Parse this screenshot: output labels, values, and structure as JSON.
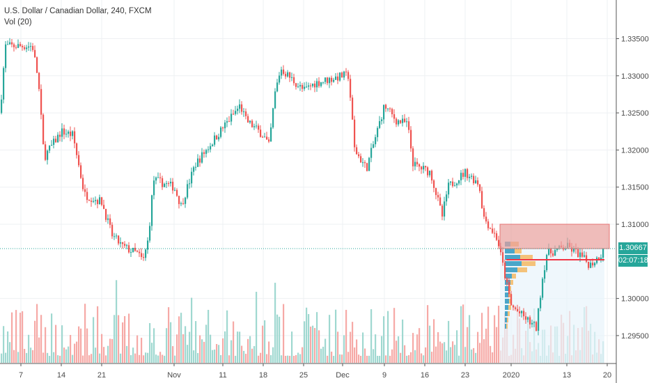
{
  "header": {
    "title": "U.S. Dollar / Canadian Dollar, 240, FXCM",
    "volume_indicator": "Vol (20)"
  },
  "price_tag": {
    "value": "1.30667",
    "countdown": "02:07:18",
    "color": "#26a69a"
  },
  "colors": {
    "up": "#26a69a",
    "down": "#ef5350",
    "zone": "#e8a09c",
    "poc": "#f23645",
    "profile_up": "#4aa6c9",
    "profile_down": "#f4c27a"
  },
  "chart_data": {
    "type": "candlestick",
    "title": "U.S. Dollar / Canadian Dollar, 240, FXCM",
    "yaxis": {
      "ticks": [
        "1.33500",
        "1.33000",
        "1.32500",
        "1.32000",
        "1.31500",
        "1.31000",
        "1.30000",
        "1.29500"
      ],
      "range": [
        1.2915,
        1.3395
      ]
    },
    "xaxis": {
      "ticks": [
        "7",
        "14",
        "21",
        "Nov",
        "11",
        "18",
        "25",
        "Dec",
        "9",
        "16",
        "23",
        "2020",
        "13",
        "20"
      ]
    },
    "grid": true,
    "last_price": 1.30667,
    "resistance_zone": [
      1.3067,
      1.31
    ],
    "poc_level": 1.305,
    "price_path": [
      [
        "Oct 3",
        1.325
      ],
      [
        "Oct 4",
        1.334
      ],
      [
        "Oct 9",
        1.334
      ],
      [
        "Oct 10",
        1.3295
      ],
      [
        "Oct 11",
        1.319
      ],
      [
        "Oct 14",
        1.3225
      ],
      [
        "Oct 16",
        1.322
      ],
      [
        "Oct 17",
        1.318
      ],
      [
        "Oct 18",
        1.314
      ],
      [
        "Oct 21",
        1.313
      ],
      [
        "Oct 23",
        1.3085
      ],
      [
        "Oct 25",
        1.307
      ],
      [
        "Oct 28",
        1.306
      ],
      [
        "Oct 29",
        1.305
      ],
      [
        "Oct 30",
        1.308
      ],
      [
        "Oct 31",
        1.316
      ],
      [
        "Nov 4",
        1.315
      ],
      [
        "Nov 5",
        1.3125
      ],
      [
        "Nov 7",
        1.318
      ],
      [
        "Nov 11",
        1.323
      ],
      [
        "Nov 14",
        1.326
      ],
      [
        "Nov 15",
        1.324
      ],
      [
        "Nov 18",
        1.322
      ],
      [
        "Nov 19",
        1.3205
      ],
      [
        "Nov 20",
        1.3275
      ],
      [
        "Nov 21",
        1.331
      ],
      [
        "Nov 25",
        1.328
      ],
      [
        "Nov 27",
        1.329
      ],
      [
        "Dec 2",
        1.33
      ],
      [
        "Dec 3",
        1.33
      ],
      [
        "Dec 4",
        1.32
      ],
      [
        "Dec 6",
        1.3175
      ],
      [
        "Dec 9",
        1.326
      ],
      [
        "Dec 11",
        1.324
      ],
      [
        "Dec 13",
        1.3235
      ],
      [
        "Dec 14",
        1.318
      ],
      [
        "Dec 17",
        1.317
      ],
      [
        "Dec 19",
        1.311
      ],
      [
        "Dec 20",
        1.315
      ],
      [
        "Dec 23",
        1.317
      ],
      [
        "Dec 26",
        1.3155
      ],
      [
        "Dec 27",
        1.311
      ],
      [
        "Dec 30",
        1.308
      ],
      [
        "Dec 31",
        1.305
      ],
      [
        "Jan 2",
        1.299
      ],
      [
        "Jan 7",
        1.296
      ],
      [
        "Jan 8",
        1.302
      ],
      [
        "Jan 9",
        1.306
      ],
      [
        "Jan 13",
        1.307
      ],
      [
        "Jan 15",
        1.306
      ],
      [
        "Jan 17",
        1.3045
      ],
      [
        "Jan 20",
        1.30667
      ]
    ]
  }
}
